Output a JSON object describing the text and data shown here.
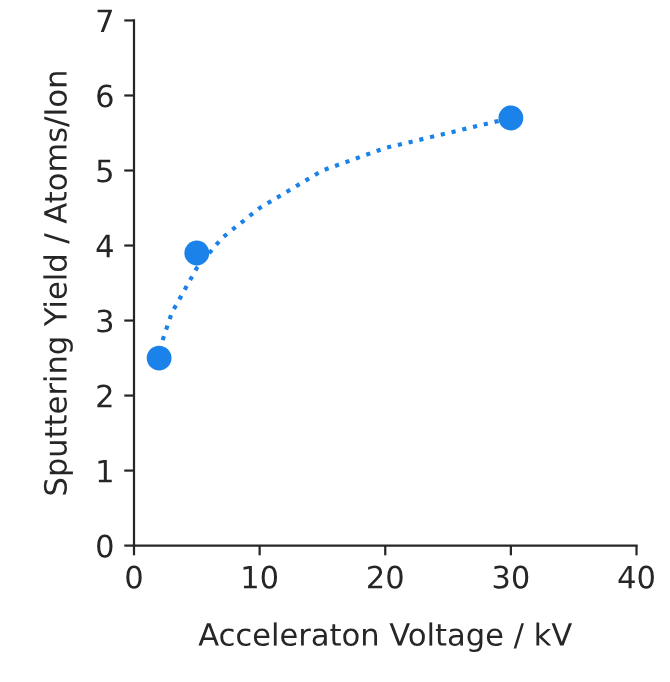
{
  "chart_data": {
    "type": "scatter",
    "xlabel": "Acceleraton Voltage / kV",
    "ylabel": "Sputtering Yield / Atoms/Ion",
    "xlim": [
      0,
      40
    ],
    "xticks": [
      0,
      10,
      20,
      30,
      40
    ],
    "ylim": [
      0,
      7
    ],
    "yticks": [
      0,
      1,
      2,
      3,
      4,
      5,
      6,
      7
    ],
    "grid": false,
    "legend": false,
    "series": [
      {
        "color": "#1a82e8",
        "x": [
          2,
          5,
          30
        ],
        "values": [
          2.5,
          3.9,
          5.7
        ],
        "marker": "circle"
      },
      {
        "type": "line",
        "color": "#1a82e8",
        "line_style": "dotted",
        "marker": "none",
        "x": [
          2,
          3,
          4,
          5,
          7,
          10,
          15,
          20,
          25,
          30
        ],
        "values": [
          2.6,
          3.1,
          3.4,
          3.7,
          4.1,
          4.5,
          5.0,
          5.3,
          5.5,
          5.7
        ]
      }
    ]
  }
}
